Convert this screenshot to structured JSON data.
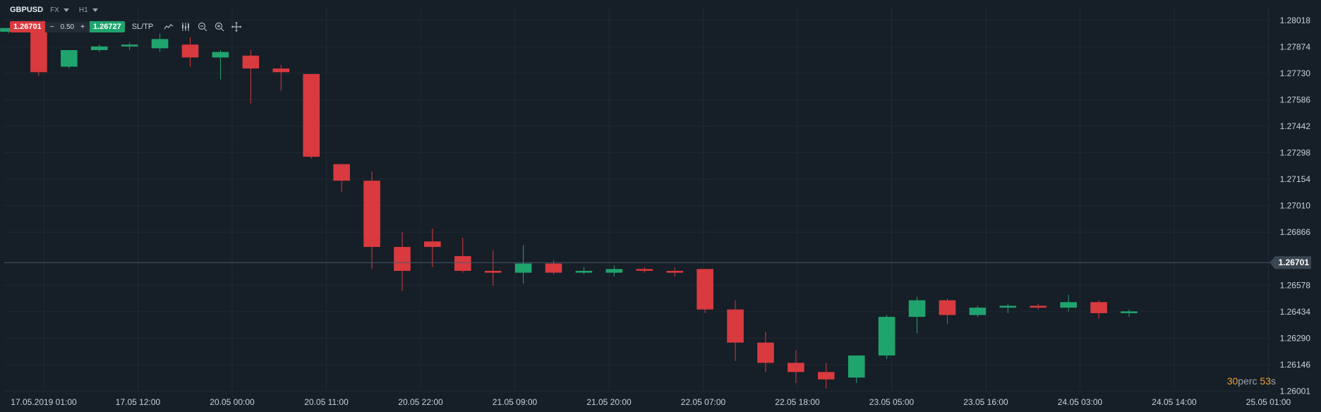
{
  "header": {
    "symbol": "GBPUSD",
    "market": "FX",
    "timeframe": "H1"
  },
  "trade_bar": {
    "sell_price": "1.26701",
    "minus_label": "−",
    "lot": "0.50",
    "plus_label": "+",
    "buy_price": "1.26727",
    "sltp_label": "SL/TP"
  },
  "countdown": {
    "minutes": "30",
    "minutes_unit": "perc",
    "seconds": "53",
    "seconds_unit": "s"
  },
  "colors": {
    "background": "#161e27",
    "up": "#1fa46e",
    "down": "#d83a3f",
    "grid": "#202a33",
    "axis_text": "#c9d1d9",
    "price_line": "#4a5a68"
  },
  "icons": [
    "line-chart-icon",
    "indicators-icon",
    "zoom-out-icon",
    "zoom-in-icon",
    "crosshair-icon",
    "caret-down-icon"
  ],
  "chart_data": {
    "type": "candlestick",
    "ylim": [
      1.26,
      1.2809
    ],
    "y_ticks": [
      "1.28018",
      "1.27874",
      "1.27730",
      "1.27586",
      "1.27442",
      "1.27298",
      "1.27154",
      "1.27010",
      "1.26866",
      "1.26578",
      "1.26434",
      "1.26290",
      "1.26146",
      "1.26001"
    ],
    "current_price": "1.26701",
    "x_tick_labels": [
      "17.05.2019 01:00",
      "17.05 12:00",
      "20.05 00:00",
      "20.05 11:00",
      "20.05 22:00",
      "21.05 09:00",
      "21.05 20:00",
      "22.05 07:00",
      "22.05 18:00",
      "23.05 05:00",
      "23.05 16:00",
      "24.05 03:00",
      "24.05 14:00",
      "25.05 01:00"
    ],
    "candles": [
      {
        "o": 1.27956,
        "h": 1.27976,
        "c": 1.27976,
        "l": 1.27946
      },
      {
        "o": 1.27976,
        "h": 1.27976,
        "c": 1.27736,
        "l": 1.27716
      },
      {
        "o": 1.27766,
        "h": 1.27856,
        "c": 1.27856,
        "l": 1.27756
      },
      {
        "o": 1.27856,
        "h": 1.27886,
        "c": 1.27876,
        "l": 1.27846
      },
      {
        "o": 1.27876,
        "h": 1.27896,
        "c": 1.27886,
        "l": 1.27856
      },
      {
        "o": 1.27866,
        "h": 1.27946,
        "c": 1.27916,
        "l": 1.27846
      },
      {
        "o": 1.27886,
        "h": 1.27926,
        "c": 1.27816,
        "l": 1.27766
      },
      {
        "o": 1.27816,
        "h": 1.27856,
        "c": 1.27846,
        "l": 1.27696
      },
      {
        "o": 1.27826,
        "h": 1.27856,
        "c": 1.27756,
        "l": 1.27566
      },
      {
        "o": 1.27756,
        "h": 1.27776,
        "c": 1.27736,
        "l": 1.27636
      },
      {
        "o": 1.27726,
        "h": 1.27726,
        "c": 1.27276,
        "l": 1.27266
      },
      {
        "o": 1.27236,
        "h": 1.27226,
        "c": 1.27146,
        "l": 1.27086
      },
      {
        "o": 1.27146,
        "h": 1.27196,
        "c": 1.26786,
        "l": 1.26666
      },
      {
        "o": 1.26786,
        "h": 1.26866,
        "c": 1.26656,
        "l": 1.26546
      },
      {
        "o": 1.26816,
        "h": 1.26886,
        "c": 1.26786,
        "l": 1.26676
      },
      {
        "o": 1.26736,
        "h": 1.26836,
        "c": 1.26656,
        "l": 1.26646
      },
      {
        "o": 1.26656,
        "h": 1.26766,
        "c": 1.26646,
        "l": 1.26576
      },
      {
        "o": 1.26646,
        "h": 1.26796,
        "c": 1.26696,
        "l": 1.26586
      },
      {
        "o": 1.26696,
        "h": 1.26716,
        "c": 1.26646,
        "l": 1.26636
      },
      {
        "o": 1.26646,
        "h": 1.26676,
        "c": 1.26656,
        "l": 1.26636
      },
      {
        "o": 1.26646,
        "h": 1.26686,
        "c": 1.26666,
        "l": 1.26626
      },
      {
        "o": 1.26666,
        "h": 1.26676,
        "c": 1.26656,
        "l": 1.26646
      },
      {
        "o": 1.26656,
        "h": 1.26676,
        "c": 1.26646,
        "l": 1.26626
      },
      {
        "o": 1.26666,
        "h": 1.26666,
        "c": 1.26446,
        "l": 1.26426
      },
      {
        "o": 1.26446,
        "h": 1.26496,
        "c": 1.26266,
        "l": 1.26166
      },
      {
        "o": 1.26266,
        "h": 1.26326,
        "c": 1.26156,
        "l": 1.26106
      },
      {
        "o": 1.26156,
        "h": 1.26226,
        "c": 1.26106,
        "l": 1.26046
      },
      {
        "o": 1.26106,
        "h": 1.26156,
        "c": 1.26066,
        "l": 1.26016
      },
      {
        "o": 1.26076,
        "h": 1.26196,
        "c": 1.26196,
        "l": 1.26046
      },
      {
        "o": 1.26196,
        "h": 1.26416,
        "c": 1.26406,
        "l": 1.26176
      },
      {
        "o": 1.26406,
        "h": 1.26516,
        "c": 1.26496,
        "l": 1.26316
      },
      {
        "o": 1.26496,
        "h": 1.26506,
        "c": 1.26416,
        "l": 1.26366
      },
      {
        "o": 1.26416,
        "h": 1.26466,
        "c": 1.26456,
        "l": 1.26406
      },
      {
        "o": 1.26456,
        "h": 1.26476,
        "c": 1.26466,
        "l": 1.26426
      },
      {
        "o": 1.26466,
        "h": 1.26476,
        "c": 1.26456,
        "l": 1.26446
      },
      {
        "o": 1.26456,
        "h": 1.26526,
        "c": 1.26486,
        "l": 1.26436
      },
      {
        "o": 1.26486,
        "h": 1.26496,
        "c": 1.26426,
        "l": 1.26396
      },
      {
        "o": 1.26426,
        "h": 1.26446,
        "c": 1.26436,
        "l": 1.26406
      }
    ]
  }
}
